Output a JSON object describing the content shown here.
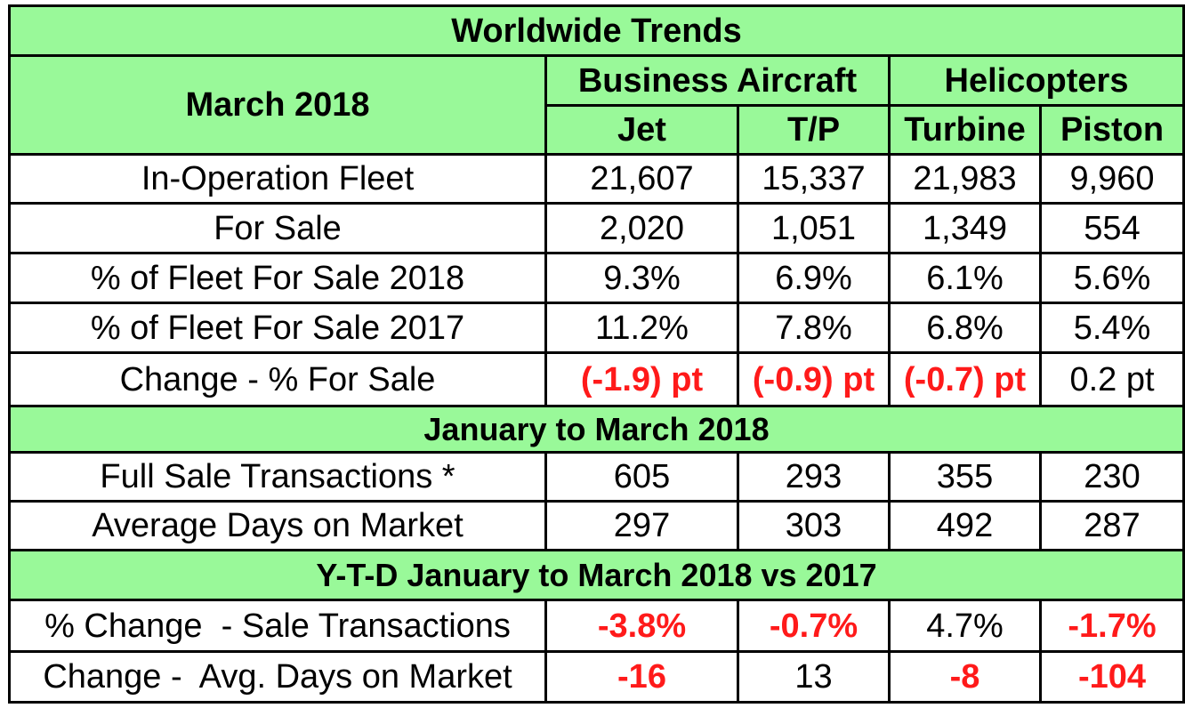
{
  "title": "Worldwide Trends",
  "period_label": "March 2018",
  "groups": {
    "business": "Business Aircraft",
    "helicopters": "Helicopters"
  },
  "columns": [
    "Jet",
    "T/P",
    "Turbine",
    "Piston"
  ],
  "section1_rows": [
    {
      "label": "In-Operation Fleet",
      "values": [
        "21,607",
        "15,337",
        "21,983",
        "9,960"
      ]
    },
    {
      "label": "For Sale",
      "values": [
        "2,020",
        "1,051",
        "1,349",
        "554"
      ]
    },
    {
      "label": "% of Fleet For Sale 2018",
      "values": [
        "9.3%",
        "6.9%",
        "6.1%",
        "5.6%"
      ]
    },
    {
      "label": "% of Fleet For Sale 2017",
      "values": [
        "11.2%",
        "7.8%",
        "6.8%",
        "5.4%"
      ]
    },
    {
      "label": "Change - % For Sale",
      "values": [
        "(-1.9) pt",
        "(-0.9) pt",
        "(-0.7) pt",
        "0.2 pt"
      ]
    }
  ],
  "section2_title": "January to March 2018",
  "section2_rows": [
    {
      "label": "Full Sale Transactions *",
      "values": [
        "605",
        "293",
        "355",
        "230"
      ]
    },
    {
      "label": "Average Days on Market",
      "values": [
        "297",
        "303",
        "492",
        "287"
      ]
    }
  ],
  "section3_title": "Y-T-D January to March 2018 vs 2017",
  "section3_rows": [
    {
      "label": "% Change  - Sale Transactions",
      "values": [
        "-3.8%",
        "-0.7%",
        "4.7%",
        "-1.7%"
      ]
    },
    {
      "label": "Change -  Avg. Days on Market",
      "values": [
        "-16",
        "13",
        "-8",
        "-104"
      ]
    }
  ],
  "colors": {
    "header_green": "#99f999",
    "negative_red": "#ff1a1a",
    "border": "#000000"
  }
}
